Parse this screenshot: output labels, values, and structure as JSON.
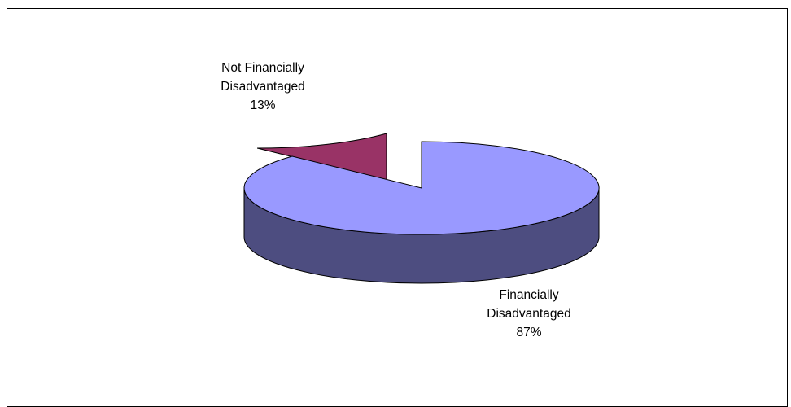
{
  "chart_data": {
    "type": "pie",
    "style": "3d-exploded",
    "title": "",
    "slices": [
      {
        "label_line1": "Financially",
        "label_line2": "Disadvantaged",
        "percent_label": "87%",
        "value": 87,
        "top_color": "#9999ff",
        "side_color": "#4d4d80"
      },
      {
        "label_line1": "Not Financially",
        "label_line2": "Disadvantaged",
        "percent_label": "13%",
        "value": 13,
        "top_color": "#993366",
        "side_color": "#4d1a33"
      }
    ],
    "legend": "none",
    "colors": {
      "background": "#ffffff",
      "border": "#000000",
      "outline": "#000000"
    }
  }
}
